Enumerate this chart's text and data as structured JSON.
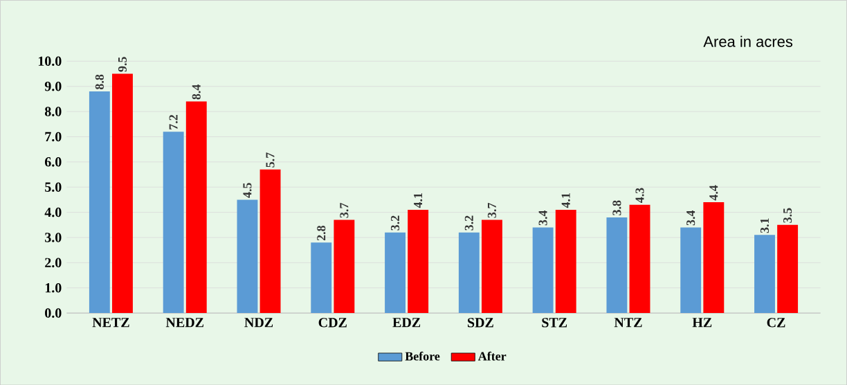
{
  "chart_data": {
    "type": "bar",
    "title": "Area in acres",
    "categories": [
      "NETZ",
      "NEDZ",
      "NDZ",
      "CDZ",
      "EDZ",
      "SDZ",
      "STZ",
      "NTZ",
      "HZ",
      "CZ"
    ],
    "series": [
      {
        "name": "Before",
        "color": "#5b9bd5",
        "values": [
          8.8,
          7.2,
          4.5,
          2.8,
          3.2,
          3.2,
          3.4,
          3.8,
          3.4,
          3.1
        ]
      },
      {
        "name": "After",
        "color": "#ff0000",
        "values": [
          9.5,
          8.4,
          5.7,
          3.7,
          4.1,
          3.7,
          4.1,
          4.3,
          4.4,
          3.5
        ]
      }
    ],
    "ylim": [
      0,
      10
    ],
    "yticks": [
      {
        "value": 0,
        "label": "0.0"
      },
      {
        "value": 1,
        "label": "1.0"
      },
      {
        "value": 2,
        "label": "2.0"
      },
      {
        "value": 3,
        "label": "3.0"
      },
      {
        "value": 4,
        "label": "4.0"
      },
      {
        "value": 5,
        "label": "5.0"
      },
      {
        "value": 6,
        "label": "6.0"
      },
      {
        "value": 7,
        "label": "7.0"
      },
      {
        "value": 8,
        "label": "8.0"
      },
      {
        "value": 9,
        "label": "9.0"
      },
      {
        "value": 10,
        "label": "10.0"
      }
    ],
    "grid": "y",
    "legend": "bottom",
    "data_labels": true
  }
}
